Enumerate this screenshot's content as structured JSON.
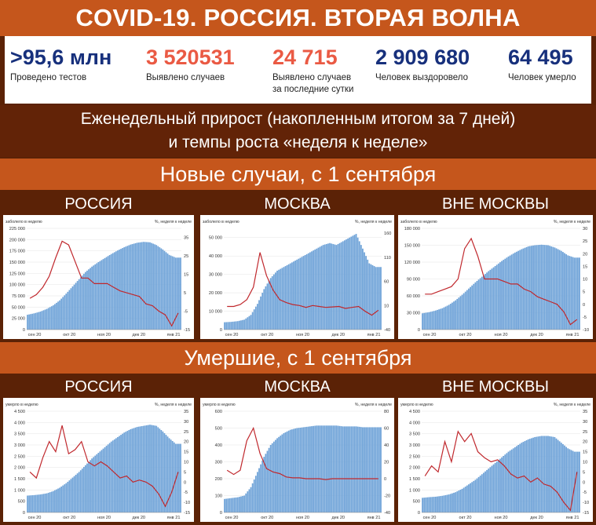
{
  "header": {
    "title": "COVID-19. РОССИЯ. ВТОРАЯ ВОЛНА"
  },
  "stats": [
    {
      "value": ">95,6 млн",
      "label": "Проведено тестов",
      "color": "#17307c"
    },
    {
      "value": "3 520531",
      "label": "Выявлено случаев",
      "color": "#ea5a44"
    },
    {
      "value": "24 715",
      "label": "Выявлено случаев\nза последние сутки",
      "color": "#ea5a44"
    },
    {
      "value": "2 909 680",
      "label": "Человек выздоровело",
      "color": "#17307c"
    },
    {
      "value": "64 495",
      "label": "Человек умерло",
      "color": "#17307c"
    }
  ],
  "weekly": {
    "line1": "Еженедельный прирост (накопленным итогом за 7 дней)",
    "line2": "и темпы роста «неделя к неделе»"
  },
  "sections": {
    "new_cases": "Новые случаи, с 1 сентября",
    "deaths": "Умершие, с 1 сентября"
  },
  "panel_titles": [
    "РОССИЯ",
    "МОСКВА",
    "ВНЕ МОСКВЫ",
    "РОССИЯ",
    "МОСКВА",
    "ВНЕ МОСКВЫ"
  ],
  "colors": {
    "bars": "#6fa3d8",
    "line": "#c0282d",
    "accent": "#c5561c"
  },
  "chart_data": [
    {
      "type": "bar",
      "region": "РОССИЯ",
      "left_axis_label": "заболело в неделю",
      "right_axis_label": "%, неделя к неделе",
      "x_ticks": [
        "сен 20",
        "окт 20",
        "ноя 20",
        "дек 20",
        "янв 21"
      ],
      "yleft_ticks": [
        "0",
        "25 000",
        "50 000",
        "75 000",
        "100 000",
        "125 000",
        "150 000",
        "175 000",
        "200 000",
        "225 000"
      ],
      "yright_ticks": [
        "-15",
        "-5",
        "5",
        "15",
        "25",
        "35"
      ],
      "ylim_left": [
        0,
        225000
      ],
      "ylim_right": [
        -15,
        40
      ],
      "bars": [
        33000,
        36000,
        40000,
        46000,
        54000,
        65000,
        80000,
        96000,
        112000,
        128000,
        140000,
        150000,
        159000,
        168000,
        176000,
        183000,
        189000,
        193000,
        195000,
        194000,
        188000,
        178000,
        166000,
        160000
      ],
      "growth_pct": [
        2,
        4,
        8,
        14,
        24,
        33,
        31,
        22,
        13,
        13,
        10,
        10,
        10,
        8,
        6,
        5,
        4,
        3,
        -1,
        -2,
        -5,
        -7,
        -13,
        -6
      ]
    },
    {
      "type": "bar",
      "region": "МОСКВА",
      "left_axis_label": "заболело в неделю",
      "right_axis_label": "%, неделя к неделе",
      "x_ticks": [
        "сен 20",
        "окт 20",
        "ноя 20",
        "дек 20",
        "янв 21"
      ],
      "yleft_ticks": [
        "0",
        "10 000",
        "20 000",
        "30 000",
        "40 000",
        "50 000"
      ],
      "yright_ticks": [
        "-40",
        "10",
        "60",
        "110",
        "160"
      ],
      "ylim_left": [
        0,
        55000
      ],
      "ylim_right": [
        -40,
        170
      ],
      "bars": [
        4000,
        4200,
        4600,
        5400,
        8000,
        14000,
        22000,
        28000,
        32000,
        34000,
        36000,
        38000,
        40000,
        42000,
        44000,
        46000,
        47000,
        46000,
        48000,
        50000,
        52000,
        44000,
        36000,
        34000
      ],
      "growth_pct": [
        8,
        8,
        12,
        22,
        48,
        120,
        72,
        42,
        22,
        16,
        12,
        10,
        6,
        10,
        8,
        6,
        7,
        8,
        4,
        6,
        8,
        -2,
        -10,
        0
      ]
    },
    {
      "type": "bar",
      "region": "ВНЕ МОСКВЫ",
      "left_axis_label": "заболело в неделю",
      "right_axis_label": "%, неделя к неделе",
      "x_ticks": [
        "сен 20",
        "окт 20",
        "ноя 20",
        "дек 20",
        "янв 21"
      ],
      "yleft_ticks": [
        "0",
        "30 000",
        "60 000",
        "90 000",
        "120 000",
        "150 000",
        "180 000"
      ],
      "yright_ticks": [
        "-10",
        "-5",
        "0",
        "5",
        "10",
        "15",
        "20",
        "25",
        "30"
      ],
      "ylim_left": [
        0,
        180000
      ],
      "ylim_right": [
        -10,
        30
      ],
      "bars": [
        29000,
        31000,
        34000,
        38000,
        44000,
        52000,
        62000,
        73000,
        84000,
        94000,
        104000,
        113000,
        122000,
        130000,
        137000,
        143000,
        148000,
        150000,
        151000,
        150000,
        146000,
        140000,
        132000,
        128000
      ],
      "growth_pct": [
        4,
        4,
        5,
        6,
        7,
        10,
        22,
        26,
        19,
        10,
        10,
        10,
        9,
        8,
        8,
        6,
        5,
        3,
        2,
        1,
        0,
        -3,
        -8,
        -6
      ]
    },
    {
      "type": "bar",
      "region": "РОССИЯ",
      "left_axis_label": "умерло в неделю",
      "right_axis_label": "%, неделя к неделе",
      "x_ticks": [
        "сен 20",
        "окт 20",
        "ноя 20",
        "дек 20",
        "янв 21"
      ],
      "yleft_ticks": [
        "0",
        "500",
        "1 000",
        "1 500",
        "2 000",
        "2 500",
        "3 000",
        "3 500",
        "4 000",
        "4 500"
      ],
      "yright_ticks": [
        "-15",
        "-10",
        "-5",
        "0",
        "5",
        "10",
        "15",
        "20",
        "25",
        "30",
        "35"
      ],
      "ylim_left": [
        0,
        4500
      ],
      "ylim_right": [
        -15,
        35
      ],
      "bars": [
        750,
        770,
        800,
        850,
        950,
        1100,
        1300,
        1550,
        1800,
        2100,
        2400,
        2650,
        2900,
        3150,
        3350,
        3550,
        3700,
        3800,
        3850,
        3900,
        3850,
        3600,
        3300,
        3050
      ],
      "growth_pct": [
        5,
        2,
        12,
        20,
        15,
        28,
        14,
        16,
        20,
        10,
        8,
        10,
        8,
        5,
        2,
        3,
        0,
        1,
        0,
        -2,
        -6,
        -12,
        -5,
        5
      ]
    },
    {
      "type": "bar",
      "region": "МОСКВА",
      "left_axis_label": "умерло в неделю",
      "right_axis_label": "%, неделя к неделе",
      "x_ticks": [
        "сен 20",
        "окт 20",
        "ноя 20",
        "дек 20",
        "янв 21"
      ],
      "yleft_ticks": [
        "0",
        "100",
        "200",
        "300",
        "400",
        "500",
        "600"
      ],
      "yright_ticks": [
        "-40",
        "-20",
        "0",
        "20",
        "40",
        "60",
        "80"
      ],
      "ylim_left": [
        0,
        600
      ],
      "ylim_right": [
        -40,
        80
      ],
      "bars": [
        80,
        85,
        90,
        100,
        150,
        240,
        330,
        400,
        440,
        470,
        490,
        500,
        505,
        510,
        515,
        515,
        515,
        515,
        510,
        510,
        510,
        505,
        505,
        505
      ],
      "growth_pct": [
        10,
        5,
        10,
        45,
        60,
        30,
        12,
        8,
        6,
        2,
        1,
        1,
        0,
        0,
        0,
        -1,
        0,
        0,
        0,
        0,
        0,
        0,
        0,
        0
      ]
    },
    {
      "type": "bar",
      "region": "ВНЕ МОСКВЫ",
      "left_axis_label": "умерло в неделю",
      "right_axis_label": "%, неделя к неделе",
      "x_ticks": [
        "сен 20",
        "окт 20",
        "ноя 20",
        "дек 20",
        "янв 21"
      ],
      "yleft_ticks": [
        "0",
        "500",
        "1 000",
        "1 500",
        "2 000",
        "2 500",
        "3 000",
        "3 500",
        "4 000",
        "4 500"
      ],
      "yright_ticks": [
        "-15",
        "-10",
        "-5",
        "0",
        "5",
        "10",
        "15",
        "20",
        "25",
        "30",
        "35"
      ],
      "ylim_left": [
        0,
        4500
      ],
      "ylim_right": [
        -15,
        35
      ],
      "bars": [
        650,
        680,
        700,
        740,
        800,
        900,
        1050,
        1250,
        1450,
        1700,
        1950,
        2200,
        2450,
        2700,
        2900,
        3100,
        3250,
        3350,
        3400,
        3400,
        3350,
        3100,
        2850,
        2700
      ],
      "growth_pct": [
        3,
        8,
        5,
        20,
        10,
        25,
        20,
        24,
        15,
        12,
        10,
        11,
        8,
        4,
        2,
        3,
        0,
        2,
        -1,
        -2,
        -5,
        -10,
        -14,
        5
      ]
    }
  ]
}
